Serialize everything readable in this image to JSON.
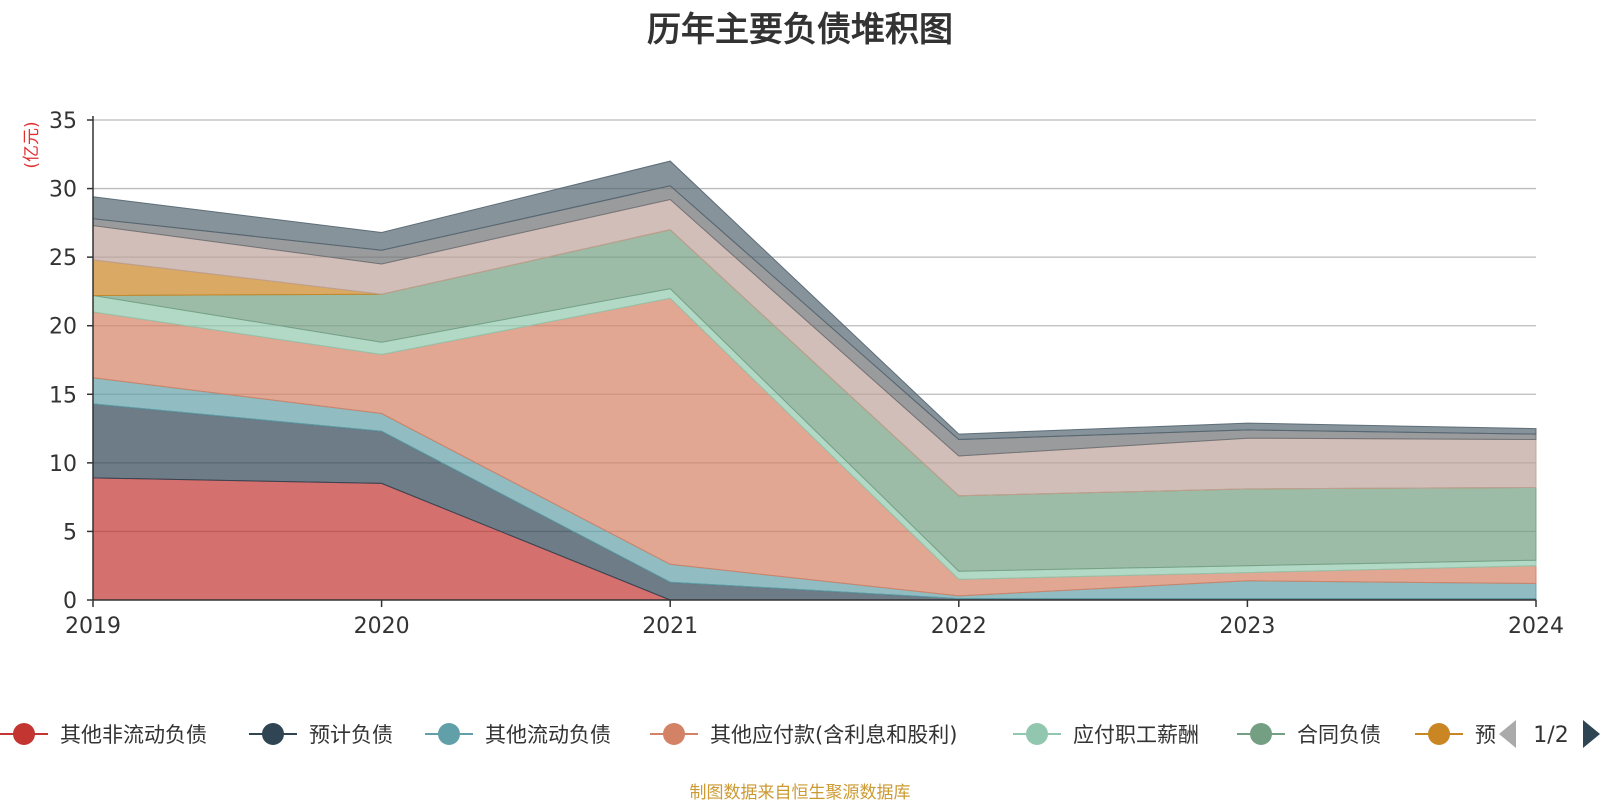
{
  "colors": {
    "axis": "#333333",
    "grid": "#bbbbbb",
    "unit_label": "#e03030",
    "source_note": "#cc9a33",
    "pager_active": "#2f4554",
    "pager_inactive": "#aaaaaa"
  },
  "chart_data": {
    "type": "area",
    "stacked": true,
    "title": "历年主要负债堆积图",
    "ylabel": "亿元",
    "ylabel_display": "(亿元)",
    "ylim": [
      0,
      35
    ],
    "yticks": [
      0,
      5,
      10,
      15,
      20,
      25,
      30,
      35
    ],
    "grid": true,
    "legend_position": "bottom",
    "categories": [
      "2019",
      "2020",
      "2021",
      "2022",
      "2023",
      "2024"
    ],
    "series": [
      {
        "name": "其他非流动负债",
        "color": "#c23531",
        "values": [
          8.9,
          8.5,
          0.0,
          0.0,
          0.0,
          0.0
        ]
      },
      {
        "name": "预计负债",
        "color": "#2f4554",
        "values": [
          5.4,
          3.8,
          1.3,
          0.1,
          0.1,
          0.1
        ]
      },
      {
        "name": "其他流动负债",
        "color": "#61a0a8",
        "values": [
          1.9,
          1.3,
          1.3,
          0.2,
          1.3,
          1.1
        ]
      },
      {
        "name": "其他应付款(含利息和股利)",
        "color": "#d48265",
        "values": [
          4.8,
          4.3,
          19.4,
          1.2,
          0.6,
          1.3
        ]
      },
      {
        "name": "应付职工薪酬",
        "color": "#91c7ae",
        "values": [
          1.2,
          0.9,
          0.7,
          0.6,
          0.5,
          0.4
        ]
      },
      {
        "name": "合同负债",
        "color": "#749f83",
        "values": [
          0.0,
          3.5,
          4.3,
          5.5,
          5.6,
          5.3
        ]
      },
      {
        "name": "预收款项",
        "color": "#ca8622",
        "values": [
          2.6,
          0.0,
          0.0,
          0.0,
          0.0,
          0.0
        ]
      },
      {
        "name": "",
        "color": "#bda29a",
        "values": [
          2.5,
          2.2,
          2.2,
          2.9,
          3.7,
          3.5
        ]
      },
      {
        "name": "",
        "color": "#6e7074",
        "values": [
          0.5,
          1.0,
          1.0,
          1.2,
          0.6,
          0.4
        ]
      },
      {
        "name": "",
        "color": "#546570",
        "values": [
          1.6,
          1.3,
          1.8,
          0.4,
          0.5,
          0.4
        ]
      }
    ]
  },
  "legend": {
    "items": [
      {
        "label": "其他非流动负债",
        "color": "#c23531"
      },
      {
        "label": "预计负债",
        "color": "#2f4554"
      },
      {
        "label": "其他流动负债",
        "color": "#61a0a8"
      },
      {
        "label": "其他应付款(含利息和股利)",
        "color": "#d48265"
      },
      {
        "label": "应付职工薪酬",
        "color": "#91c7ae"
      },
      {
        "label": "合同负债",
        "color": "#749f83"
      },
      {
        "label": "预",
        "color": "#ca8622"
      }
    ],
    "pager": {
      "text": "1/2"
    }
  },
  "source_note": "制图数据来自恒生聚源数据库"
}
